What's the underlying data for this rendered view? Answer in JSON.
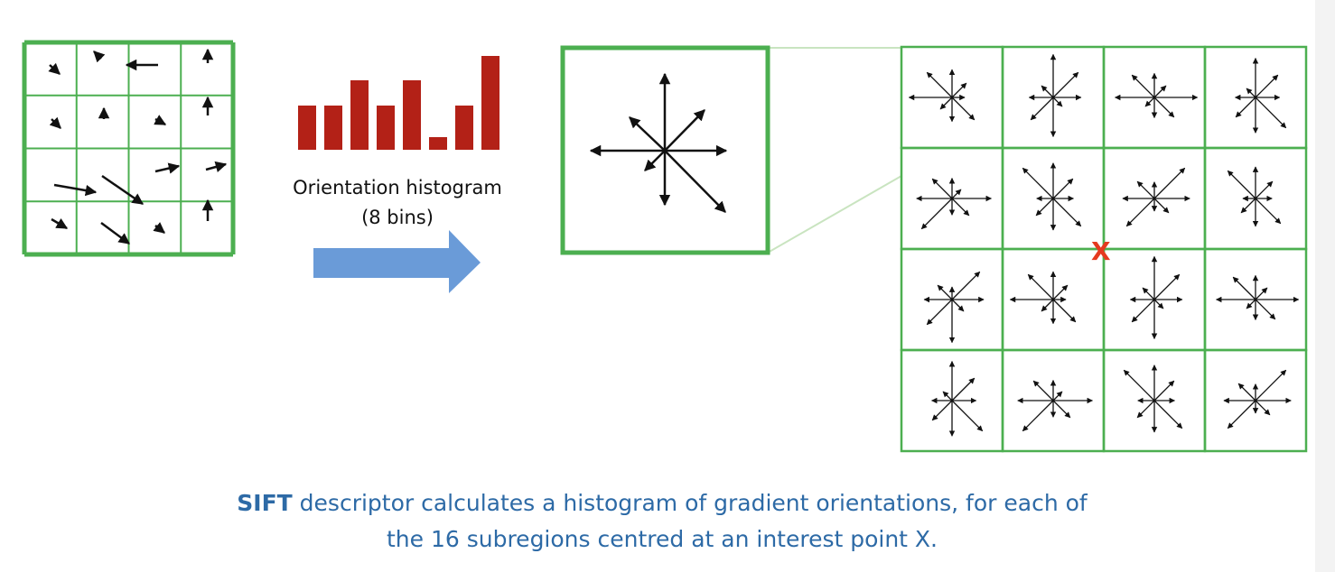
{
  "histogram_label": {
    "line1": "Orientation histogram",
    "line2": "(8 bins)"
  },
  "interest_point": "X",
  "caption": {
    "bold": "SIFT",
    "line1": "descriptor calculates a histogram of gradient orientations, for each of",
    "line2": "the 16 subregions centred at an interest point X."
  }
}
